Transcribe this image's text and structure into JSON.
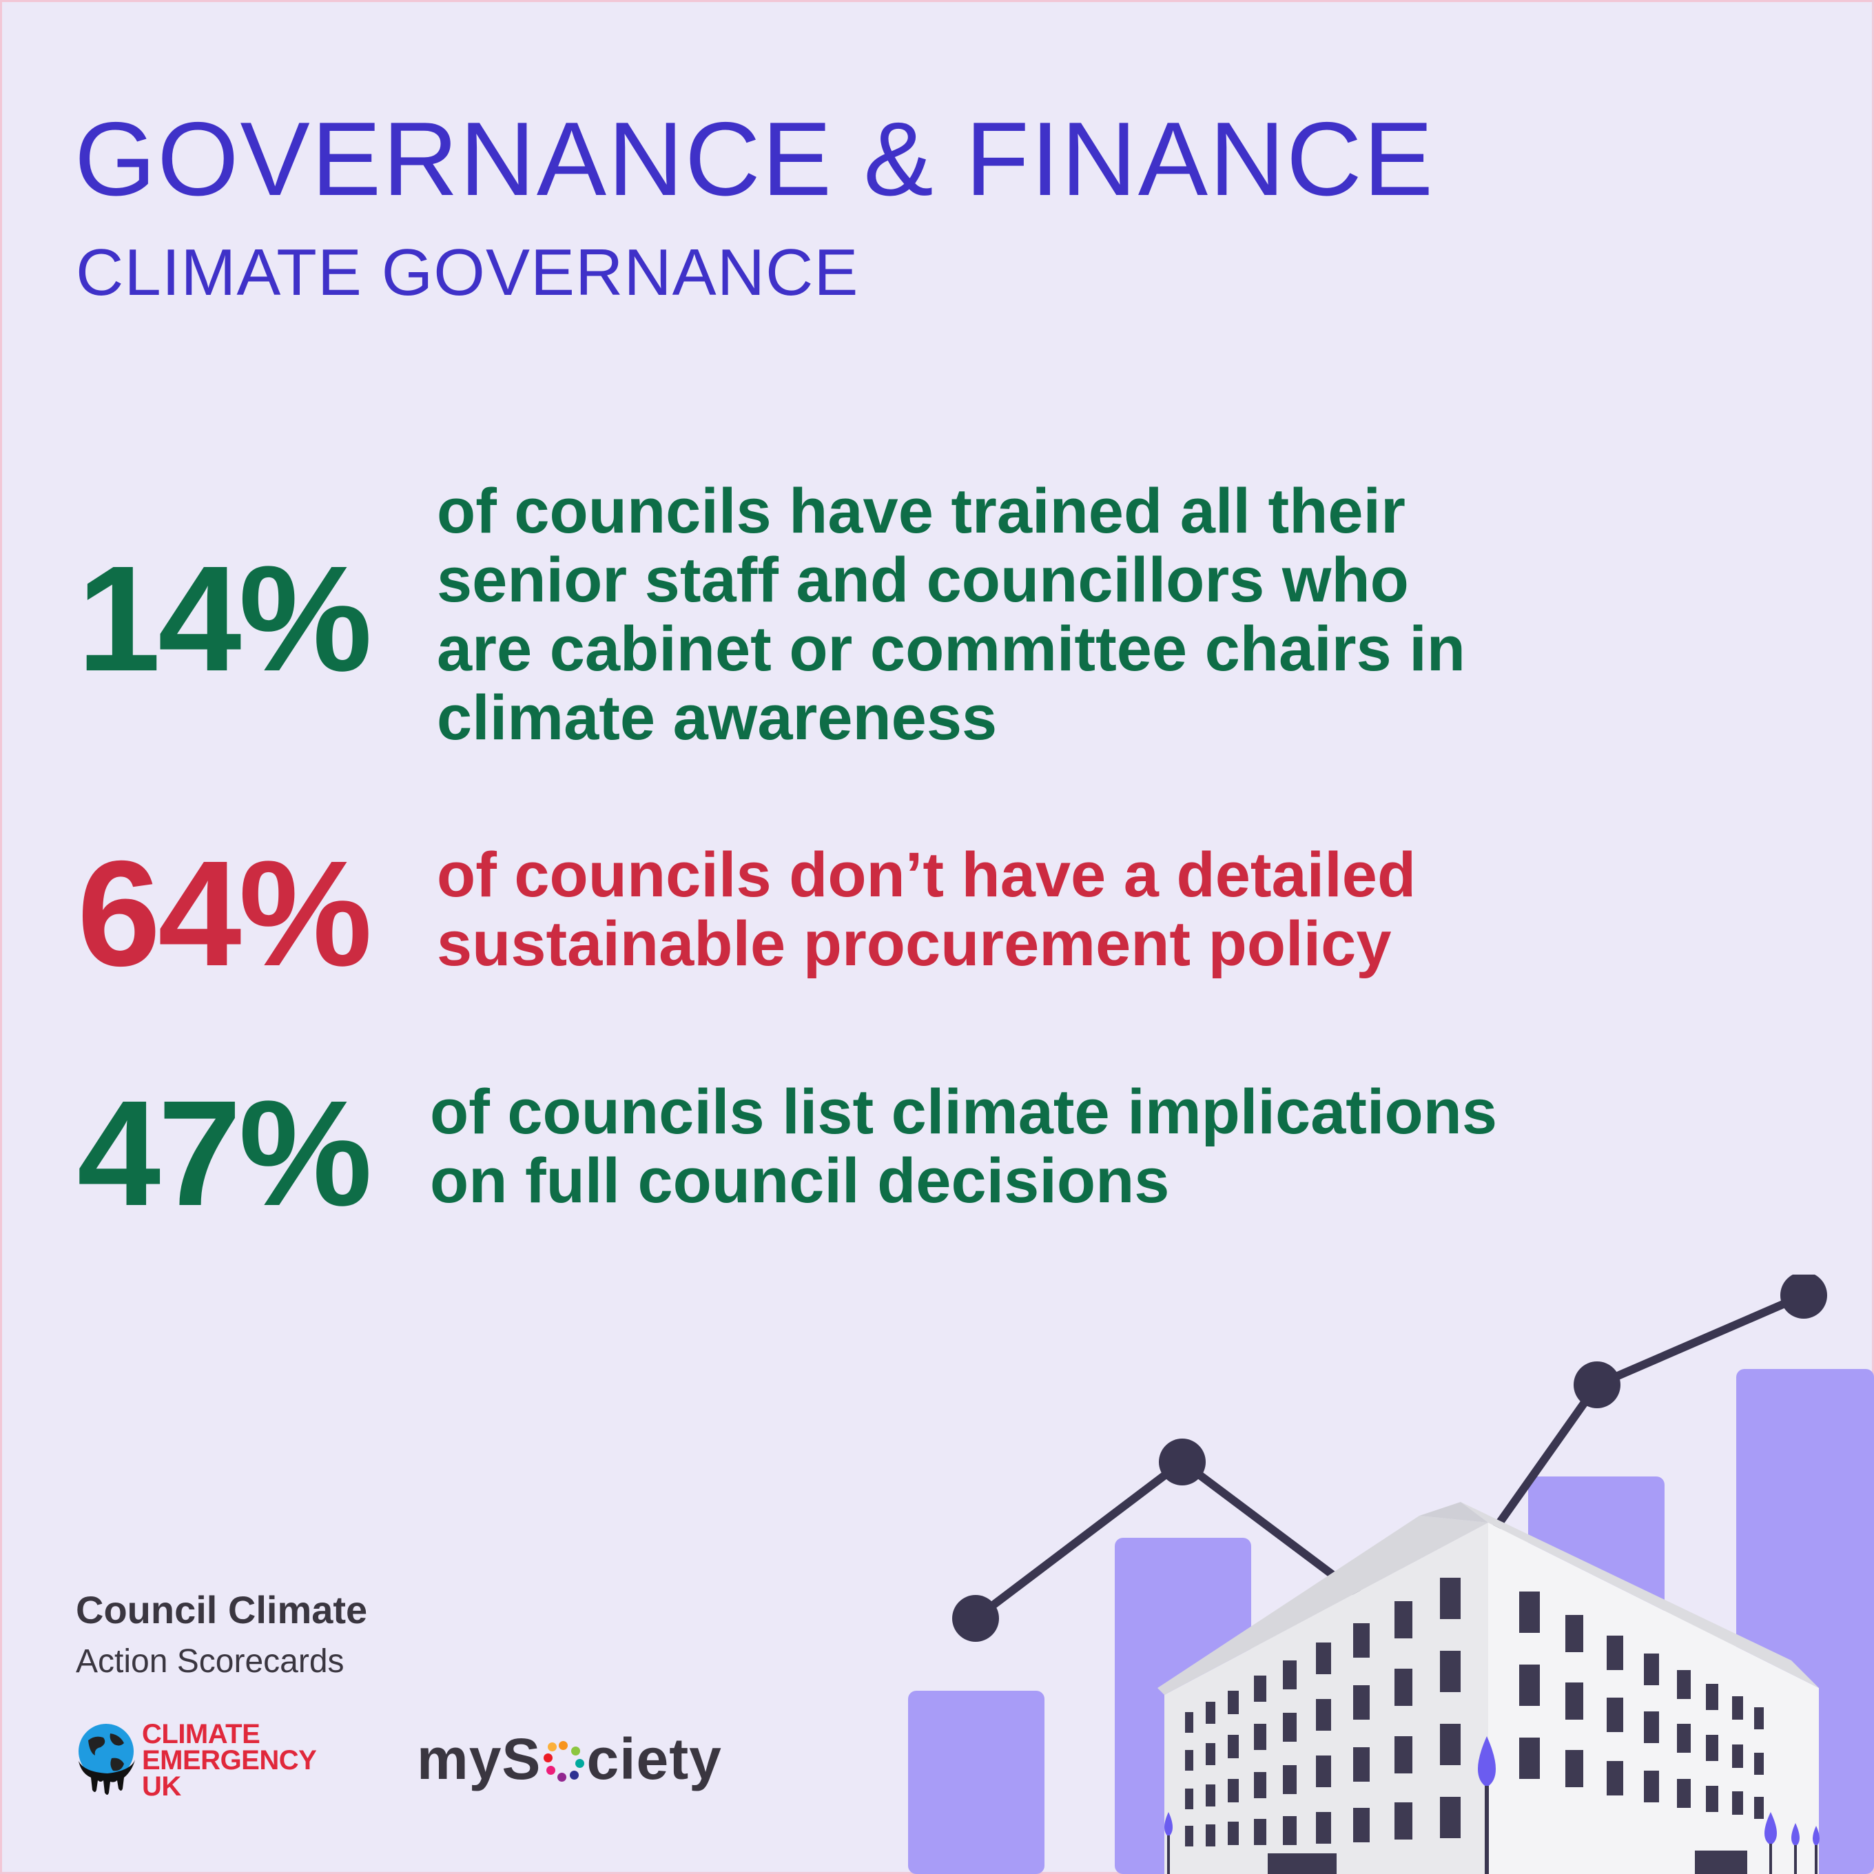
{
  "header": {
    "title": "GOVERNANCE & FINANCE",
    "subtitle": "CLIMATE GOVERNANCE"
  },
  "colors": {
    "title": "#3f31c8",
    "green": "#0e6d47",
    "red": "#cc2b41",
    "background": "#ece9f8",
    "bar": "#a89cf7",
    "chart_line": "#3a3650"
  },
  "stats": [
    {
      "value": "14%",
      "text": "of councils have trained all their\nsenior staff and councillors who\nare cabinet or committee chairs in\nclimate awareness",
      "color": "green"
    },
    {
      "value": "64%",
      "text": "of councils don’t have a detailed\nsustainable procurement policy",
      "color": "red"
    },
    {
      "value": "47%",
      "text": "of councils list climate implications\non full council decisions",
      "color": "green"
    }
  ],
  "branding": {
    "line1": "Council Climate",
    "line2": "Action Scorecards",
    "ceuk_logo": "CLIMATE\nEMERGENCY\nUK",
    "mysociety_prefix": "myS",
    "mysociety_suffix": "ciety"
  },
  "illustration": {
    "icons": [
      "bar-chart-illustration",
      "line-trend-illustration",
      "office-building-illustration",
      "tree-icon"
    ]
  }
}
